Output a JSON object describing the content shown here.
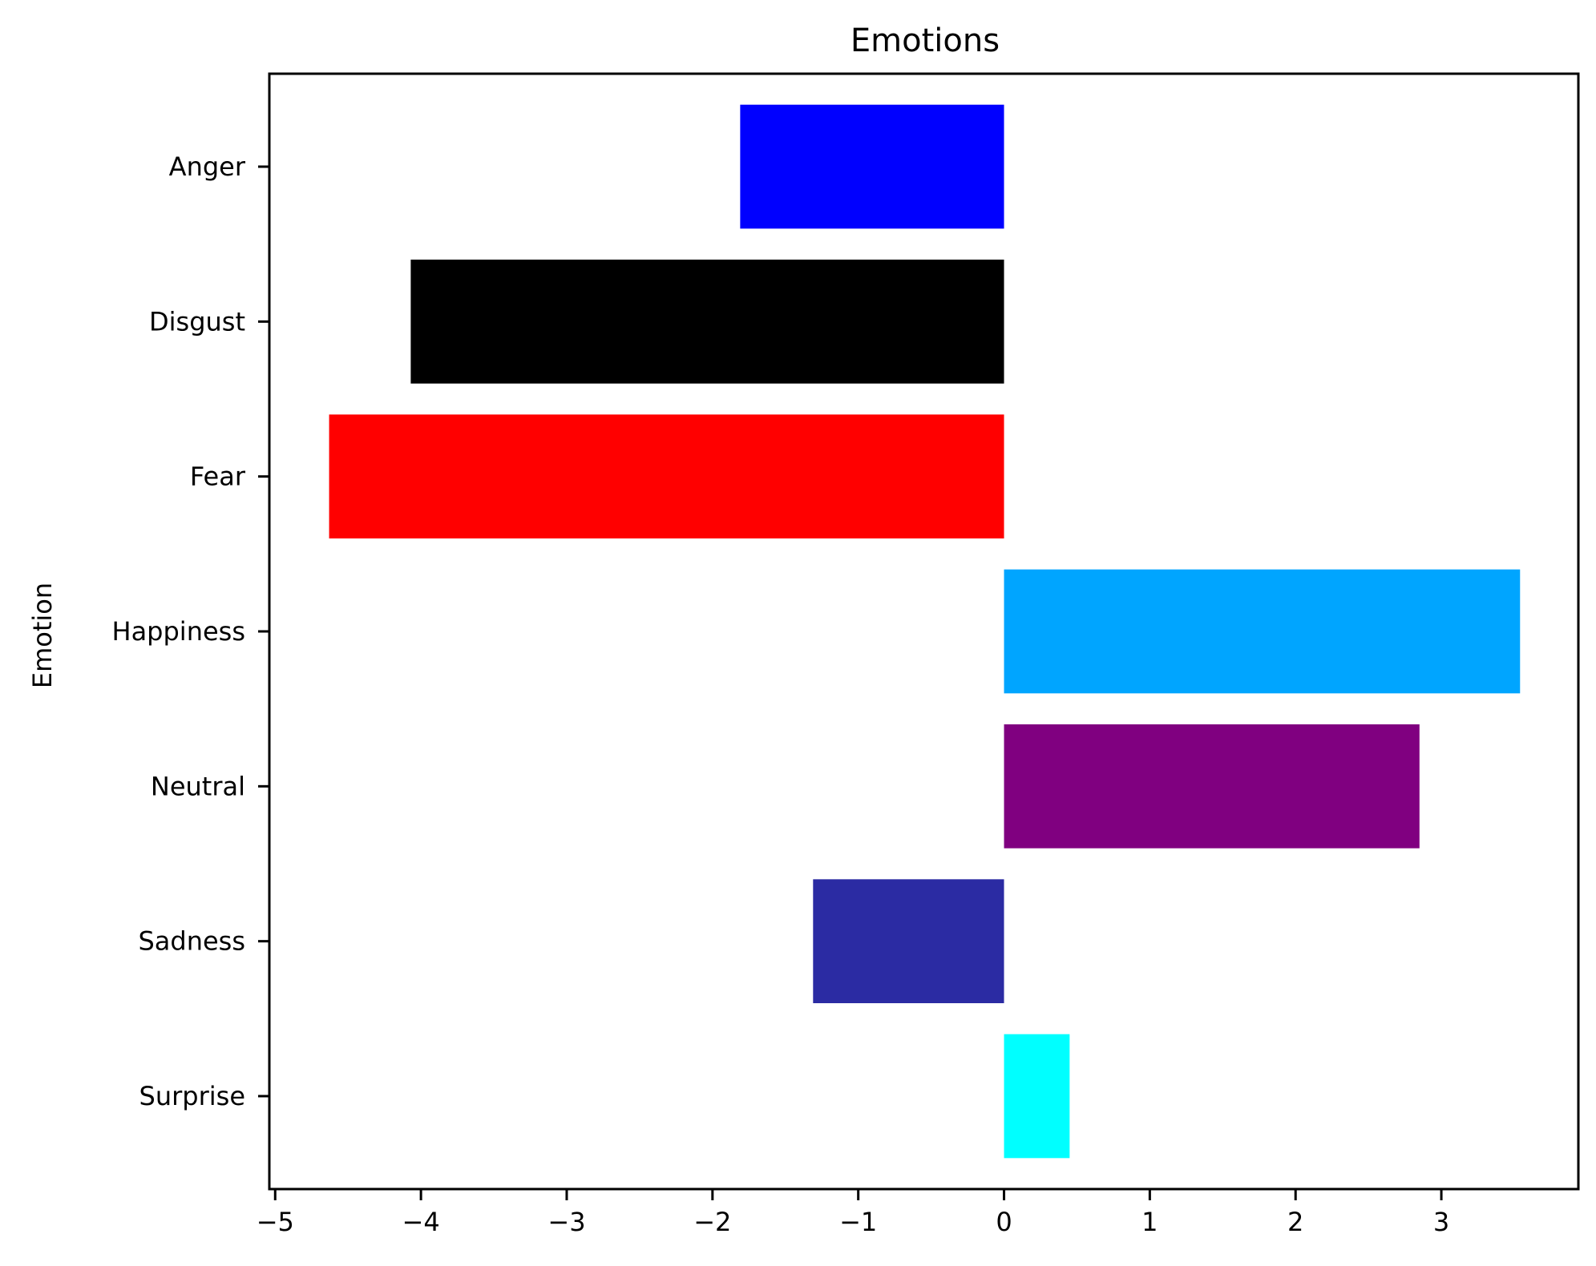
{
  "chart_data": {
    "type": "bar",
    "orientation": "horizontal",
    "title": "Emotions",
    "xlabel": "",
    "ylabel": "Emotion",
    "categories": [
      "Anger",
      "Disgust",
      "Fear",
      "Happiness",
      "Neutral",
      "Sadness",
      "Surprise"
    ],
    "values": [
      -1.81,
      -4.07,
      -4.63,
      3.54,
      2.85,
      -1.31,
      0.45
    ],
    "colors": [
      "#0000ff",
      "#000000",
      "#ff0000",
      "#00a5ff",
      "#800080",
      "#2b2ba3",
      "#00ffff"
    ],
    "xlim": [
      -5.04,
      3.94
    ],
    "xticks": [
      -5,
      -4,
      -3,
      -2,
      -1,
      0,
      1,
      2,
      3
    ],
    "xtick_labels": [
      "−5",
      "−4",
      "−3",
      "−2",
      "−1",
      "0",
      "1",
      "2",
      "3"
    ],
    "grid": false,
    "legend": "none"
  }
}
